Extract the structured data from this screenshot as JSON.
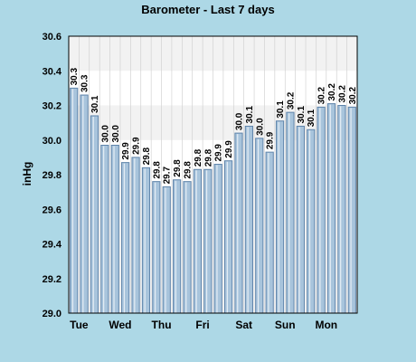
{
  "chart_data": {
    "type": "bar",
    "title": "Barometer - Last 7 days",
    "ylabel": "inHg",
    "ylim": [
      29.0,
      30.6
    ],
    "yticks": [
      "29.0",
      "29.2",
      "29.4",
      "29.6",
      "29.8",
      "30.0",
      "30.2",
      "30.4",
      "30.6"
    ],
    "x_labels": [
      "Tue",
      "Wed",
      "Thu",
      "Fri",
      "Sat",
      "Sun",
      "Mon"
    ],
    "values": [
      30.3,
      30.26,
      30.14,
      29.97,
      29.97,
      29.87,
      29.9,
      29.84,
      29.76,
      29.73,
      29.77,
      29.76,
      29.83,
      29.83,
      29.86,
      29.88,
      30.04,
      30.08,
      30.01,
      29.93,
      30.11,
      30.16,
      30.08,
      30.06,
      30.19,
      30.21,
      30.2,
      30.19
    ],
    "data_labels": [
      "30.3",
      "30.3",
      "30.1",
      "30.0",
      "30.0",
      "29.9",
      "29.9",
      "29.8",
      "29.8",
      "29.7",
      "29.8",
      "29.8",
      "29.8",
      "29.8",
      "29.9",
      "29.9",
      "30.0",
      "30.1",
      "30.0",
      "29.9",
      "30.1",
      "30.2",
      "30.1",
      "30.1",
      "30.2",
      "30.2",
      "30.2",
      "30.2"
    ],
    "bands": [
      [
        30.0,
        30.2
      ],
      [
        30.4,
        30.6
      ]
    ],
    "grid": true,
    "colors": {
      "background": "#add8e6",
      "plot": "#ffffff",
      "band": "#f2f2f2",
      "bar_fill": "#a8c4dc",
      "bar_stroke": "#5f84aa",
      "grid": "#cccccc"
    }
  }
}
